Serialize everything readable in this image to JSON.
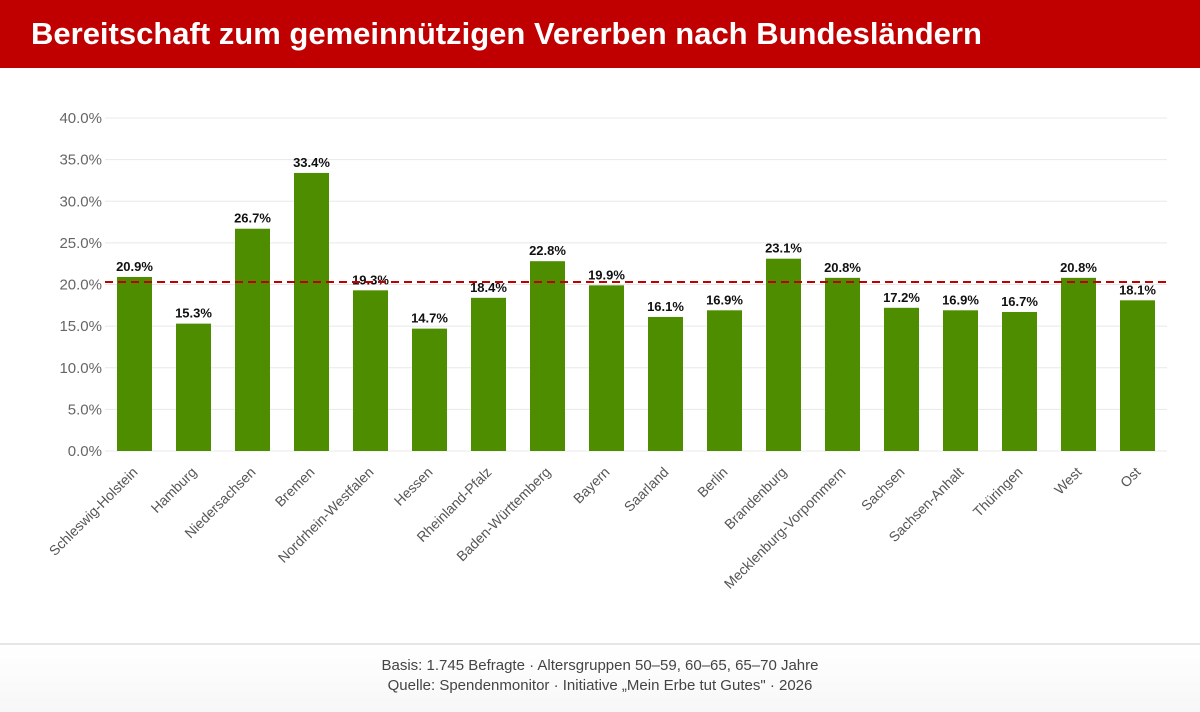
{
  "title": "Bereitschaft zum gemeinnützigen Vererben nach Bundesländern",
  "footer": {
    "line1": "Basis: 1.745 Befragte · Altersgruppen 50–59, 60–65, 65–70 Jahre",
    "line2": "Quelle: Spendenmonitor · Initiative „Mein Erbe tut Gutes\" · 2026"
  },
  "colors": {
    "title_bar": "#c00000",
    "bar": "#4e8c00",
    "reference_line": "#c00000"
  },
  "chart_data": {
    "type": "bar",
    "categories": [
      "Schleswig-Holstein",
      "Hamburg",
      "Niedersachsen",
      "Bremen",
      "Nordrhein-Westfalen",
      "Hessen",
      "Rheinland-Pfalz",
      "Baden-Württemberg",
      "Bayern",
      "Saarland",
      "Berlin",
      "Brandenburg",
      "Mecklenburg-Vorpommern",
      "Sachsen",
      "Sachsen-Anhalt",
      "Thüringen",
      "West",
      "Ost"
    ],
    "values": [
      20.9,
      15.3,
      26.7,
      33.4,
      19.3,
      14.7,
      18.4,
      22.8,
      19.9,
      16.1,
      16.9,
      23.1,
      20.8,
      17.2,
      16.9,
      16.7,
      20.8,
      18.1
    ],
    "data_labels": [
      "20.9%",
      "15.3%",
      "26.7%",
      "33.4%",
      "19.3%",
      "14.7%",
      "18.4%",
      "22.8%",
      "19.9%",
      "16.1%",
      "16.9%",
      "23.1%",
      "20.8%",
      "17.2%",
      "16.9%",
      "16.7%",
      "20.8%",
      "18.1%"
    ],
    "yticks": [
      0,
      5,
      10,
      15,
      20,
      25,
      30,
      35,
      40
    ],
    "ytick_labels": [
      "0.0%",
      "5.0%",
      "10.0%",
      "15.0%",
      "20.0%",
      "25.0%",
      "30.0%",
      "35.0%",
      "40.0%"
    ],
    "ylim": [
      0,
      40
    ],
    "reference_line": {
      "value": 20.3,
      "style": "dashed"
    },
    "grid": true,
    "xlabel": "",
    "ylabel": ""
  }
}
